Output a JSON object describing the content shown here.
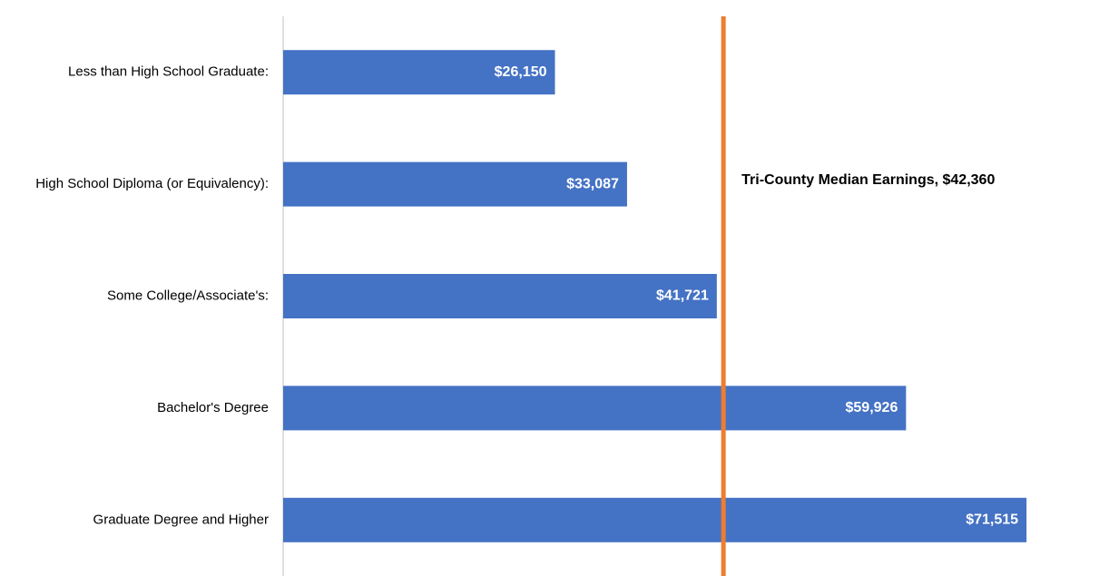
{
  "chart_data": {
    "type": "bar",
    "orientation": "horizontal",
    "categories": [
      "Less than High School Graduate:",
      "High School Diploma (or Equivalency):",
      "Some College/Associate's:",
      "Bachelor's Degree",
      "Graduate Degree and Higher"
    ],
    "values": [
      26150,
      33087,
      41721,
      59926,
      71515
    ],
    "value_labels": [
      "$26,150",
      "$33,087",
      "$41,721",
      "$59,926",
      "$71,515"
    ],
    "color": "#4472c4",
    "xlim": [
      0,
      75000
    ],
    "reference_line": {
      "value": 42360,
      "label": "Tri-County Median Earnings, $42,360",
      "color": "#ed7d31"
    }
  }
}
